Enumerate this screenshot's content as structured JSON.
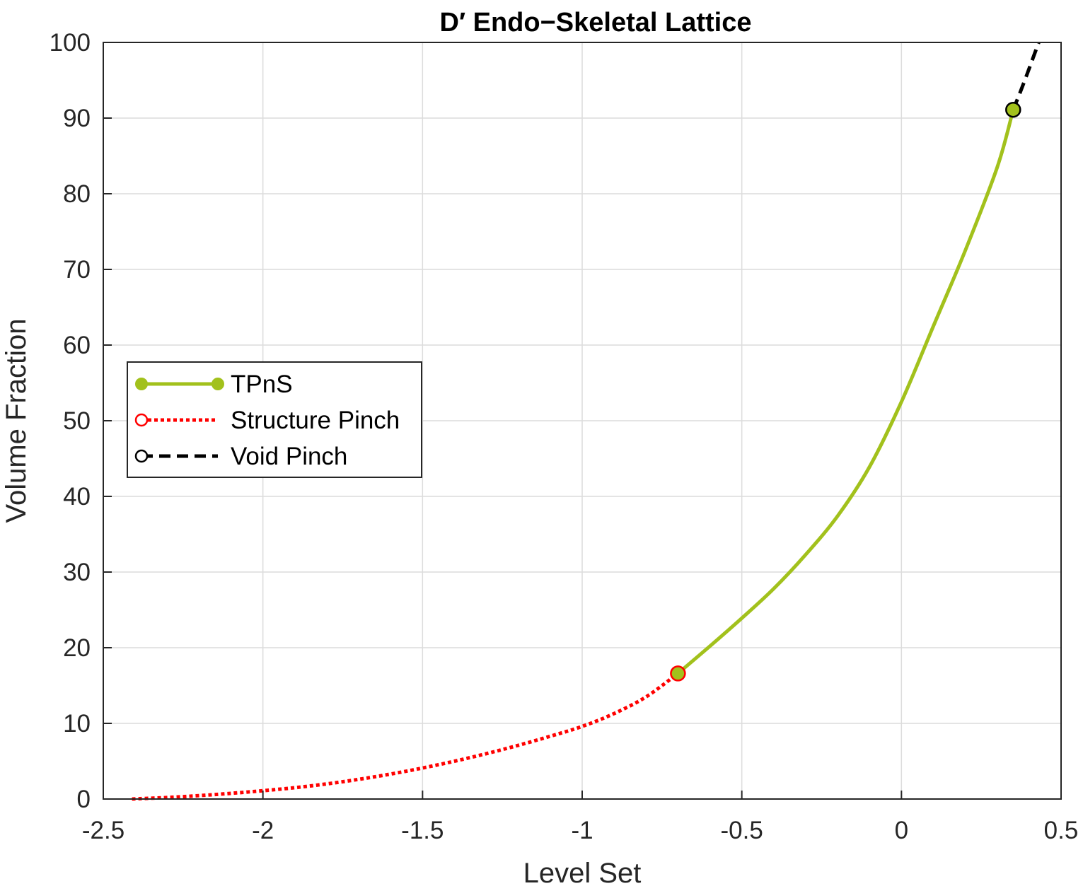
{
  "chart_data": {
    "type": "line",
    "title": "D′ Endo−Skeletal Lattice",
    "xlabel": "Level Set",
    "ylabel": "Volume Fraction",
    "xlim": [
      -2.5,
      0.5
    ],
    "ylim": [
      0,
      100
    ],
    "xticks": [
      -2.5,
      -2,
      -1.5,
      -1,
      -0.5,
      0,
      0.5
    ],
    "yticks": [
      0,
      10,
      20,
      30,
      40,
      50,
      60,
      70,
      80,
      90,
      100
    ],
    "xtick_labels": [
      "-2.5",
      "-2",
      "-1.5",
      "-1",
      "-0.5",
      "0",
      "0.5"
    ],
    "ytick_labels": [
      "0",
      "10",
      "20",
      "30",
      "40",
      "50",
      "60",
      "70",
      "80",
      "90",
      "100"
    ],
    "grid": true,
    "legend_position": "middle-left",
    "series": [
      {
        "name": "Structure Pinch",
        "color": "#ff0000",
        "style": "dotted",
        "x": [
          -2.41,
          -2.3,
          -2.2,
          -2.1,
          -2.0,
          -1.9,
          -1.8,
          -1.7,
          -1.6,
          -1.5,
          -1.4,
          -1.3,
          -1.2,
          -1.1,
          -1.0,
          -0.9,
          -0.8,
          -0.7
        ],
        "y": [
          0,
          0.2,
          0.45,
          0.75,
          1.1,
          1.5,
          2.0,
          2.6,
          3.3,
          4.1,
          5.0,
          6.0,
          7.1,
          8.3,
          9.6,
          11.3,
          13.5,
          16.6
        ]
      },
      {
        "name": "TPnS",
        "color": "#a2c11c",
        "style": "solid",
        "x": [
          -0.7,
          -0.6,
          -0.5,
          -0.4,
          -0.3,
          -0.2,
          -0.1,
          0.0,
          0.1,
          0.2,
          0.3,
          0.35
        ],
        "y": [
          16.6,
          20.2,
          23.9,
          27.8,
          32.3,
          37.4,
          43.9,
          52.5,
          62.5,
          72.5,
          83.5,
          91.1
        ]
      },
      {
        "name": "Void Pinch",
        "color": "#000000",
        "style": "dashed",
        "x": [
          0.35,
          0.37,
          0.39,
          0.41,
          0.43
        ],
        "y": [
          91.1,
          93.2,
          95.4,
          97.7,
          100
        ]
      }
    ],
    "markers": [
      {
        "x": -0.7,
        "y": 16.6,
        "fill": "#a2c11c",
        "edge": "#ff0000"
      },
      {
        "x": 0.35,
        "y": 91.1,
        "fill": "#a2c11c",
        "edge": "#000000"
      }
    ],
    "legend": [
      {
        "label": "TPnS",
        "color": "#a2c11c",
        "style": "solid",
        "marker": "filled-circle"
      },
      {
        "label": "Structure Pinch",
        "color": "#ff0000",
        "style": "dotted",
        "marker": "open-circle"
      },
      {
        "label": "Void Pinch",
        "color": "#000000",
        "style": "dashed",
        "marker": "open-circle"
      }
    ]
  }
}
